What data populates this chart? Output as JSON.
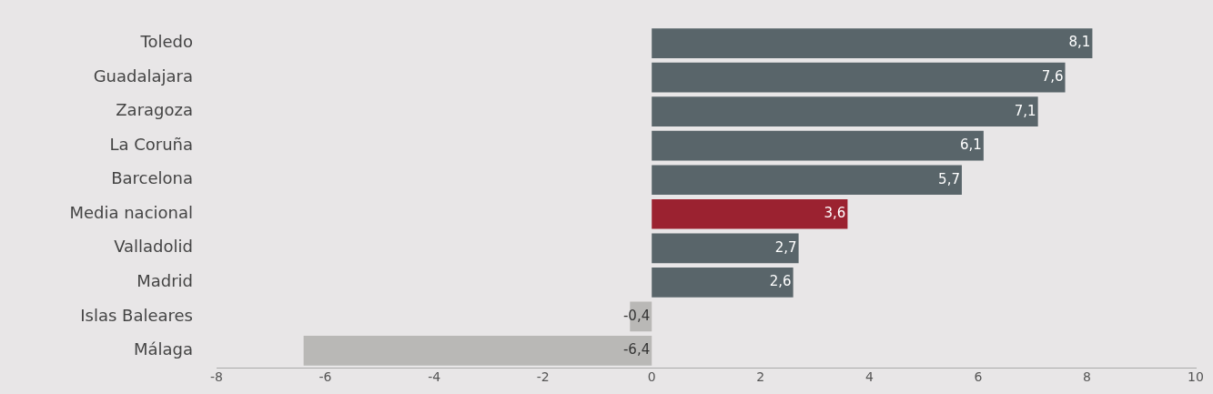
{
  "chart_data": {
    "type": "bar",
    "orientation": "horizontal",
    "categories": [
      "Toledo",
      "Guadalajara",
      "Zaragoza",
      "La Coruña",
      "Barcelona",
      "Media nacional",
      "Valladolid",
      "Madrid",
      "Islas Baleares",
      "Málaga"
    ],
    "values": [
      8.1,
      7.6,
      7.1,
      6.1,
      5.7,
      3.6,
      2.7,
      2.6,
      -0.4,
      -6.4
    ],
    "colors": [
      "#59656a",
      "#59656a",
      "#59656a",
      "#59656a",
      "#59656a",
      "#9b2230",
      "#59656a",
      "#59656a",
      "#b9b8b6",
      "#b9b8b6"
    ],
    "value_labels": [
      "8,1",
      "7,6",
      "7,1",
      "6,1",
      "5,7",
      "3,6",
      "2,7",
      "2,6",
      "-0,4",
      "-6,4"
    ],
    "xlim": [
      -8,
      10
    ],
    "xticks": [
      -8,
      -6,
      -4,
      -2,
      0,
      2,
      4,
      6,
      8,
      10
    ],
    "grid": false,
    "legend": false
  }
}
